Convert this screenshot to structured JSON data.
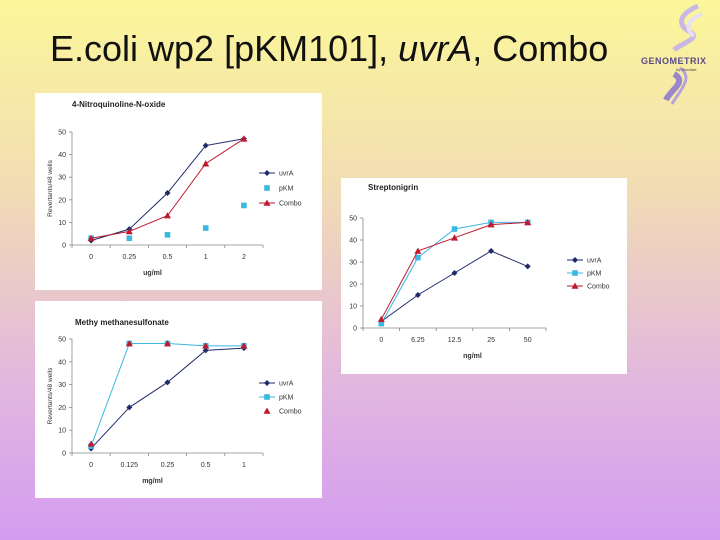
{
  "slide": {
    "title_part1": "E.coli wp2 [pKM101], ",
    "title_part2": "uvrA",
    "title_part3": ", Combo"
  },
  "logo": {
    "text": "GENOMETRIX",
    "sub": "by Stoddart"
  },
  "colors": {
    "uvrA": "#1f2a6b",
    "pKM": "#3bb8e0",
    "Combo": "#c0182e"
  },
  "chart_data": [
    {
      "type": "line",
      "title": "4-Nitroquinoline-N-oxide",
      "ylabel": "Revertants/48 wells",
      "xlabel": "ug/ml",
      "categories": [
        "0",
        "0.25",
        "0.5",
        "1",
        "2"
      ],
      "ylim": [
        0,
        50
      ],
      "yticks": [
        "0",
        "10",
        "20",
        "30",
        "40",
        "50"
      ],
      "legend": "right",
      "series": [
        {
          "name": "uvrA",
          "marker": "diamond",
          "line": true,
          "values": [
            2,
            7,
            23,
            44,
            47
          ]
        },
        {
          "name": "pKM",
          "marker": "square",
          "line": false,
          "values": [
            3,
            3,
            4.5,
            7.5,
            17.5
          ]
        },
        {
          "name": "Combo",
          "marker": "triangle",
          "line": true,
          "values": [
            3,
            6,
            13,
            36,
            47
          ]
        }
      ]
    },
    {
      "type": "line",
      "title": "Streptonigrin",
      "ylabel": "",
      "xlabel": "ng/ml",
      "categories": [
        "0",
        "6.25",
        "12.5",
        "25",
        "50"
      ],
      "ylim": [
        0,
        50
      ],
      "yticks": [
        "0",
        "10",
        "20",
        "30",
        "40",
        "50"
      ],
      "legend": "right",
      "series": [
        {
          "name": "uvrA",
          "marker": "diamond",
          "line": true,
          "values": [
            3,
            15,
            25,
            35,
            28
          ]
        },
        {
          "name": "pKM",
          "marker": "square",
          "line": true,
          "values": [
            2,
            32,
            45,
            48,
            48
          ]
        },
        {
          "name": "Combo",
          "marker": "triangle",
          "line": true,
          "values": [
            4,
            35,
            41,
            47,
            48
          ]
        }
      ]
    },
    {
      "type": "line",
      "title": "Methy methanesulfonate",
      "ylabel": "Revertants/48 wells",
      "xlabel": "mg/ml",
      "categories": [
        "0",
        "0.125",
        "0.25",
        "0.5",
        "1"
      ],
      "ylim": [
        0,
        50
      ],
      "yticks": [
        "0",
        "10",
        "20",
        "30",
        "40",
        "50"
      ],
      "legend": "right",
      "series": [
        {
          "name": "uvrA",
          "marker": "diamond",
          "line": true,
          "values": [
            2,
            20,
            31,
            45,
            46
          ]
        },
        {
          "name": "pKM",
          "marker": "square",
          "line": true,
          "values": [
            3,
            48,
            48,
            47,
            47
          ]
        },
        {
          "name": "Combo",
          "marker": "triangle",
          "line": false,
          "values": [
            4,
            48,
            48,
            47,
            47
          ]
        }
      ]
    }
  ]
}
